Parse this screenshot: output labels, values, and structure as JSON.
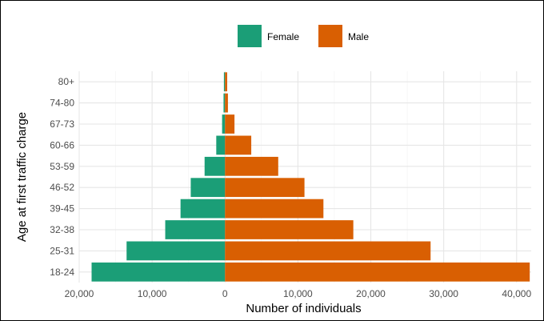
{
  "chart_data": {
    "type": "bar",
    "orientation": "horizontal",
    "layout": "population-pyramid",
    "title": "",
    "xlabel": "Number of individuals",
    "ylabel": "Age at first traffic charge",
    "categories": [
      "18-24",
      "25-31",
      "32-38",
      "39-45",
      "46-52",
      "53-59",
      "60-66",
      "67-73",
      "74-80",
      "80+"
    ],
    "series": [
      {
        "name": "Female",
        "color": "#1b9e77",
        "direction": "left",
        "values": [
          18300,
          13500,
          8200,
          6100,
          4700,
          2800,
          1200,
          400,
          200,
          150
        ]
      },
      {
        "name": "Male",
        "color": "#d95f02",
        "direction": "right",
        "values": [
          41800,
          28200,
          17600,
          13500,
          10900,
          7300,
          3600,
          1300,
          400,
          300
        ]
      }
    ],
    "xlim": [
      -20000,
      42000
    ],
    "xticks": [
      -20000,
      -10000,
      0,
      10000,
      20000,
      30000,
      40000
    ],
    "xtick_labels": [
      "20,000",
      "10,000",
      "0",
      "10,000",
      "20,000",
      "30,000",
      "40,000"
    ],
    "grid": true,
    "legend_position": "top"
  }
}
